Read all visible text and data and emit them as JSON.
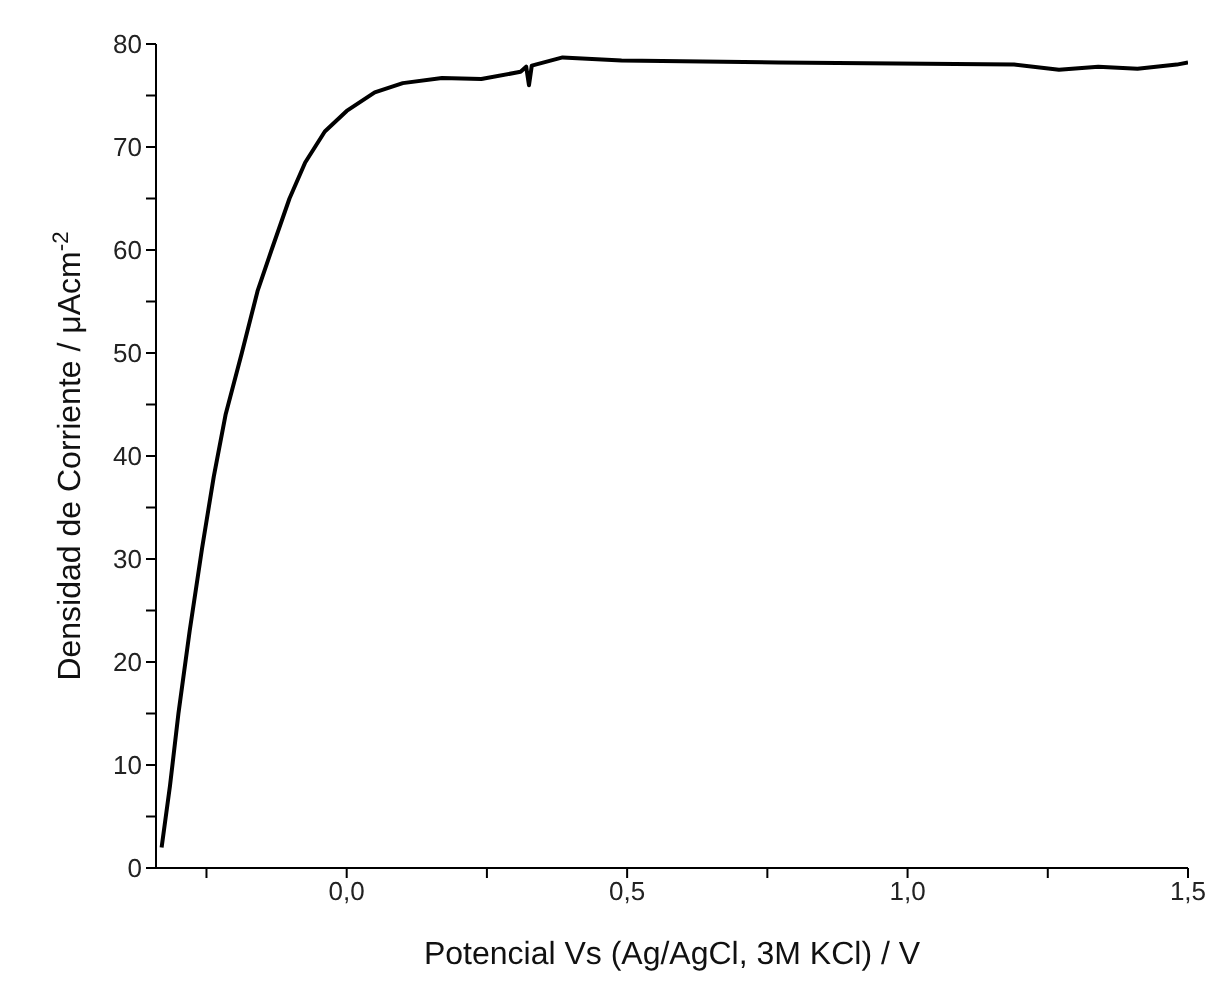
{
  "chart_data": {
    "type": "line",
    "xlabel": "Potencial Vs (Ag/AgCl, 3M KCl) / V",
    "ylabel": "Densidad de Corriente / μAcm$^{-2}$",
    "x": [
      -0.33,
      -0.315,
      -0.3,
      -0.28,
      -0.258,
      -0.237,
      -0.216,
      -0.187,
      -0.159,
      -0.134,
      -0.102,
      -0.074,
      -0.039,
      0,
      0.05,
      0.1,
      0.17,
      0.24,
      0.31,
      0.32,
      0.325,
      0.33,
      0.385,
      0.49,
      0.77,
      0.98,
      1.19,
      1.27,
      1.34,
      1.41,
      1.48,
      1.5
    ],
    "series": [
      {
        "color": "#000000",
        "values": [
          2,
          8,
          15,
          23,
          31,
          38,
          44,
          50,
          56,
          60,
          65,
          68.5,
          71.5,
          73.5,
          75.3,
          76.2,
          76.7,
          76.6,
          77.3,
          77.8,
          76,
          77.9,
          78.7,
          78.4,
          78.2,
          78.1,
          78,
          77.5,
          77.8,
          77.6,
          78,
          78.2
        ]
      }
    ],
    "xlim": [
      -0.34,
      1.5
    ],
    "xticks": [
      {
        "value": -0.25,
        "label": null
      },
      {
        "value": 0,
        "label": "0,0"
      },
      {
        "value": 0.25,
        "label": null
      },
      {
        "value": 0.5,
        "label": "0,5"
      },
      {
        "value": 0.75,
        "label": null
      },
      {
        "value": 1,
        "label": "1,0"
      },
      {
        "value": 1.25,
        "label": null
      },
      {
        "value": 1.5,
        "label": "1,5"
      }
    ],
    "ylim": [
      0,
      80
    ],
    "yticks": [
      0,
      {
        "value": 5,
        "label": null
      },
      10,
      {
        "value": 15,
        "label": null
      },
      20,
      {
        "value": 25,
        "label": null
      },
      30,
      {
        "value": 35,
        "label": null
      },
      40,
      {
        "value": 45,
        "label": null
      },
      50,
      {
        "value": 55,
        "label": null
      },
      60,
      {
        "value": 65,
        "label": null
      },
      70,
      {
        "value": 75,
        "label": null
      },
      80
    ],
    "grid": false,
    "legend": false,
    "marker": "none",
    "line_style": "solid"
  }
}
